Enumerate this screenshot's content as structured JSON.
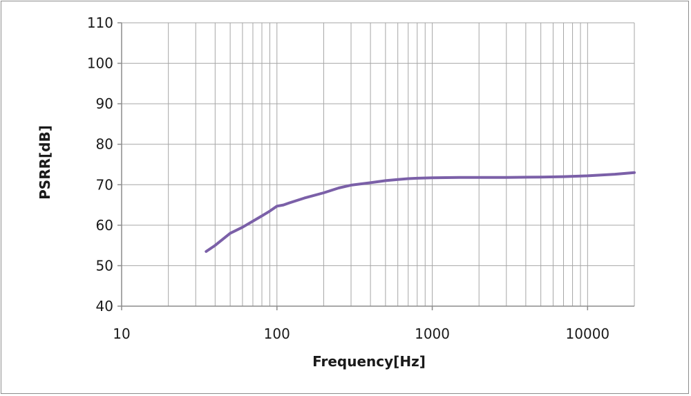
{
  "chart_data": {
    "type": "line",
    "title": "",
    "xlabel": "Frequency[Hz]",
    "ylabel": "PSRR[dB]",
    "x_scale": "log",
    "xlim": [
      10,
      20000
    ],
    "ylim": [
      40,
      110
    ],
    "x_ticks": [
      "10",
      "100",
      "1000",
      "10000"
    ],
    "y_ticks": [
      "40",
      "50",
      "60",
      "70",
      "80",
      "90",
      "100",
      "110"
    ],
    "grid": true,
    "legend": "none",
    "series": [
      {
        "color": "#7b60a8",
        "x": [
          35,
          40,
          50,
          60,
          70,
          80,
          90,
          100,
          110,
          120,
          150,
          200,
          250,
          300,
          400,
          500,
          600,
          700,
          800,
          1000,
          1500,
          2000,
          3000,
          5000,
          7000,
          10000,
          15000,
          20000
        ],
        "y": [
          53.5,
          55,
          58,
          59.5,
          61,
          62.3,
          63.5,
          64.7,
          65,
          65.5,
          66.7,
          68,
          69.2,
          69.9,
          70.5,
          71,
          71.3,
          71.5,
          71.6,
          71.7,
          71.8,
          71.8,
          71.8,
          71.9,
          72,
          72.2,
          72.6,
          73
        ]
      }
    ]
  }
}
